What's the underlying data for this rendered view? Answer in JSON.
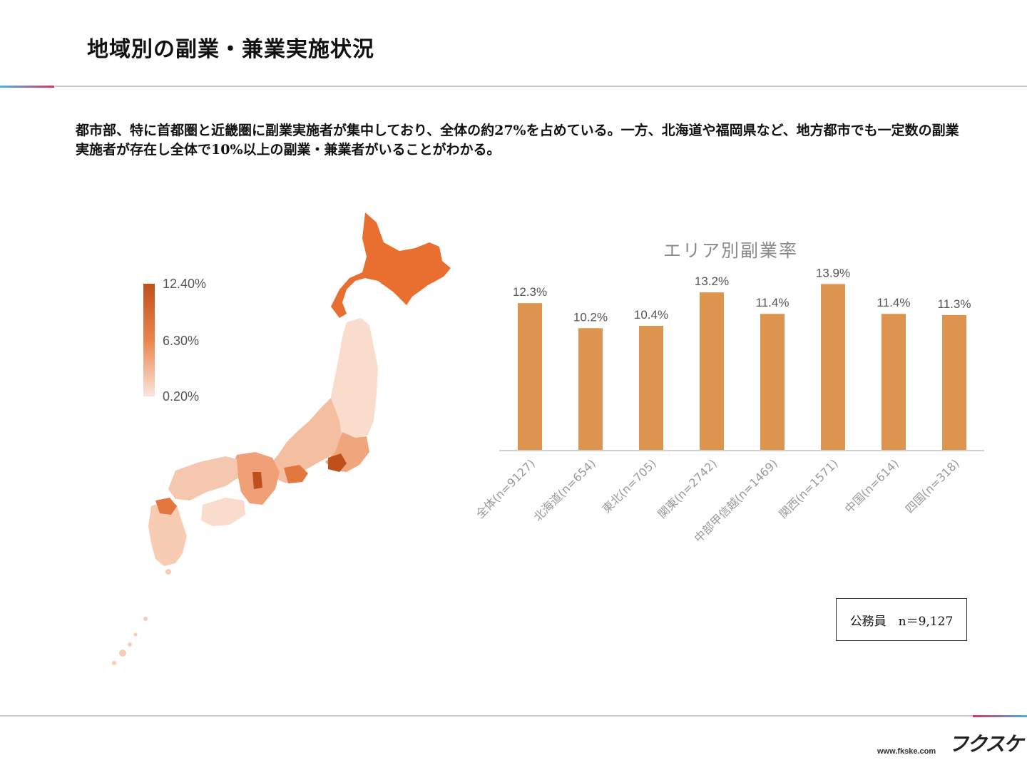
{
  "page": {
    "title": "地域別の副業・兼業実施状況",
    "description": "都市部、特に首都圏と近畿圏に副業実施者が集中しており、全体の約27%を占めている。一方、北海道や福岡県など、地方都市でも一定数の副業実施者が存在し全体で10%以上の副業・兼業者がいることがわかる。"
  },
  "map_legend": {
    "max_label": "12.40%",
    "mid_label": "6.30%",
    "min_label": "0.20%"
  },
  "colors": {
    "bar": "#DC944E",
    "map_dark": "#C0501B",
    "map_mid": "#E86F30",
    "map_light": "#F9DCCB",
    "accent_blue": "#3FB7E5",
    "accent_pink": "#E0306A"
  },
  "chart_data": {
    "type": "bar",
    "title": "エリア別副業率",
    "categories": [
      "全体(n=9127)",
      "北海道(n=654)",
      "東北(n=705)",
      "関東(n=2742)",
      "中部甲信越(n=1469)",
      "関西(n=1571)",
      "中国(n=614)",
      "四国(n=318)"
    ],
    "values": [
      12.3,
      10.2,
      10.4,
      13.2,
      11.4,
      13.9,
      11.4,
      11.3
    ],
    "value_labels": [
      "12.3%",
      "10.2%",
      "10.4%",
      "13.2%",
      "11.4%",
      "13.9%",
      "11.4%",
      "11.3%"
    ],
    "ylim": [
      0,
      15
    ],
    "grid": false
  },
  "sample_box": {
    "label": "公務員　n＝9,127"
  },
  "footer": {
    "logo": "フクスケ",
    "url": "www.fkske.com"
  }
}
